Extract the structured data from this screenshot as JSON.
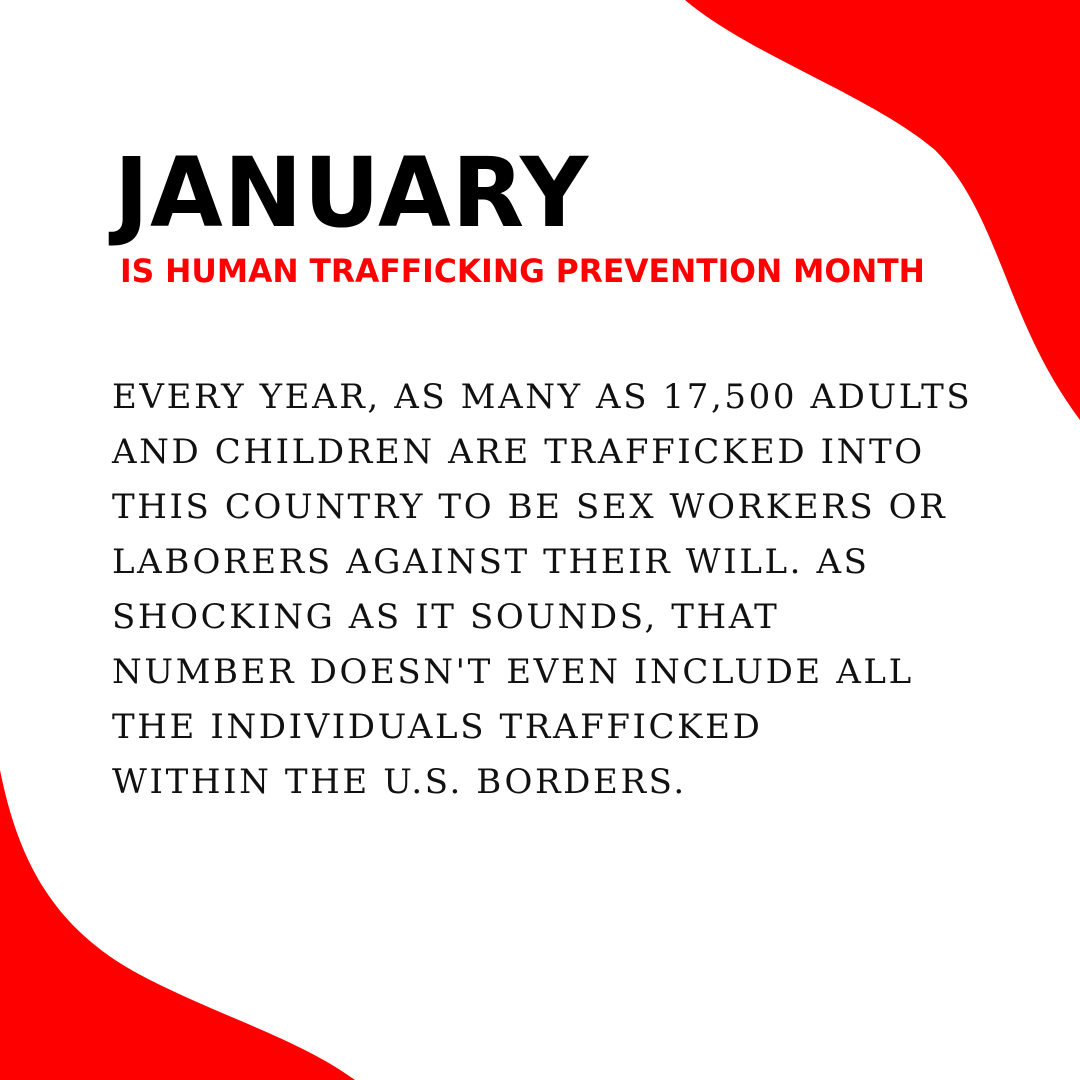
{
  "colors": {
    "accent": "#ff0000",
    "text": "#000000",
    "background": "#ffffff"
  },
  "title": "JANUARY",
  "subtitle": "IS HUMAN TRAFFICKING PREVENTION MONTH",
  "body_lines": [
    "EVERY YEAR, AS MANY AS 17,500 ADULTS",
    "AND CHILDREN ARE TRAFFICKED INTO",
    "THIS COUNTRY TO BE SEX WORKERS OR",
    "LABORERS AGAINST THEIR WILL. AS",
    "SHOCKING AS IT SOUNDS, THAT",
    "NUMBER DOESN'T EVEN INCLUDE ALL",
    "THE INDIVIDUALS TRAFFICKED",
    "WITHIN THE U.S. BORDERS."
  ]
}
